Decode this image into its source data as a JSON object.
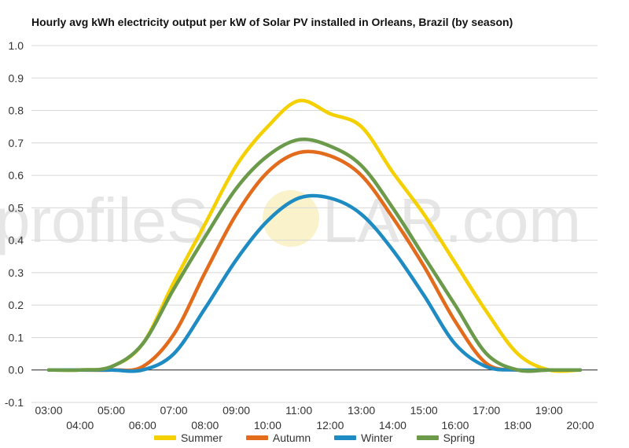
{
  "watermark": {
    "text_left": "profileS",
    "text_right": "LAR.com"
  },
  "chart_data": {
    "type": "line",
    "title": "Hourly avg kWh electricity output per kW of Solar PV installed in Orleans, Brazil (by season)",
    "xlabel": "",
    "ylabel": "",
    "ylim": [
      -0.1,
      1.0
    ],
    "yticks": [
      "-0.1",
      "0.0",
      "0.1",
      "0.2",
      "0.3",
      "0.4",
      "0.5",
      "0.6",
      "0.7",
      "0.8",
      "0.9",
      "1.0"
    ],
    "categories": [
      "03:00",
      "04:00",
      "05:00",
      "06:00",
      "07:00",
      "08:00",
      "09:00",
      "10:00",
      "11:00",
      "12:00",
      "13:00",
      "14:00",
      "15:00",
      "16:00",
      "17:00",
      "18:00",
      "19:00",
      "20:00"
    ],
    "grid": true,
    "legend_position": "bottom",
    "series": [
      {
        "name": "Summer",
        "color": "#f5d000",
        "values": [
          0.0,
          0.0,
          0.01,
          0.08,
          0.27,
          0.45,
          0.63,
          0.75,
          0.83,
          0.79,
          0.75,
          0.61,
          0.48,
          0.33,
          0.18,
          0.05,
          0.0,
          0.0
        ]
      },
      {
        "name": "Autumn",
        "color": "#e36b1c",
        "values": [
          0.0,
          0.0,
          0.0,
          0.01,
          0.11,
          0.3,
          0.48,
          0.61,
          0.67,
          0.66,
          0.6,
          0.47,
          0.32,
          0.15,
          0.02,
          0.0,
          0.0,
          0.0
        ]
      },
      {
        "name": "Winter",
        "color": "#1e8bc3",
        "values": [
          0.0,
          0.0,
          0.0,
          0.0,
          0.05,
          0.19,
          0.34,
          0.46,
          0.53,
          0.53,
          0.48,
          0.37,
          0.23,
          0.08,
          0.01,
          0.0,
          0.0,
          0.0
        ]
      },
      {
        "name": "Spring",
        "color": "#6a9a4a",
        "values": [
          0.0,
          0.0,
          0.01,
          0.08,
          0.25,
          0.41,
          0.56,
          0.66,
          0.71,
          0.69,
          0.63,
          0.5,
          0.35,
          0.2,
          0.05,
          0.0,
          0.0,
          0.0
        ]
      }
    ]
  }
}
